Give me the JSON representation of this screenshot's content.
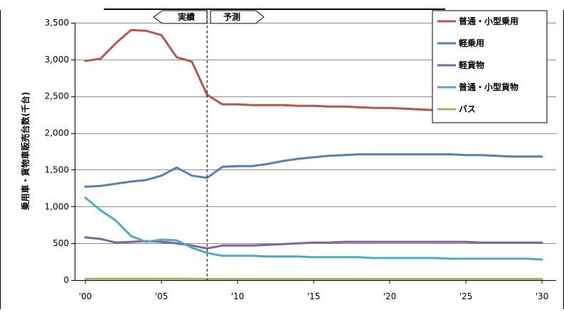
{
  "chart_data": {
    "type": "line",
    "title": "",
    "xlabel": "",
    "ylabel": "乗用車・貨物車販売台数(千台)",
    "x": [
      2000,
      2001,
      2002,
      2003,
      2004,
      2005,
      2006,
      2007,
      2008,
      2009,
      2010,
      2011,
      2012,
      2013,
      2014,
      2015,
      2016,
      2017,
      2018,
      2019,
      2020,
      2021,
      2022,
      2023,
      2024,
      2025,
      2026,
      2027,
      2028,
      2029,
      2030
    ],
    "xticks": [
      2000,
      2005,
      2010,
      2015,
      2020,
      2025,
      2030
    ],
    "xtick_labels": [
      "'00",
      "'05",
      "'10",
      "'15",
      "'20",
      "'25",
      "'30"
    ],
    "xlim": [
      2000,
      2030
    ],
    "ylim": [
      0,
      3500
    ],
    "yticks": [
      0,
      500,
      1000,
      1500,
      2000,
      2500,
      3000,
      3500
    ],
    "ytick_labels": [
      "0",
      "500",
      "1,000",
      "1,500",
      "2,000",
      "2,500",
      "3,000",
      "3,500"
    ],
    "grid": "horizontal",
    "legend_position": "top-right",
    "series": [
      {
        "name": "普通・小型乗用",
        "color": "#c0504d",
        "values": [
          2980,
          3010,
          3220,
          3400,
          3390,
          3330,
          3030,
          2970,
          2520,
          2390,
          2390,
          2380,
          2380,
          2380,
          2370,
          2370,
          2360,
          2360,
          2350,
          2340,
          2340,
          2330,
          2320,
          2310,
          2300,
          2300,
          2290,
          2280,
          2270,
          2260,
          2250
        ]
      },
      {
        "name": "軽乗用",
        "color": "#4f81bd",
        "values": [
          1270,
          1280,
          1310,
          1340,
          1360,
          1420,
          1530,
          1420,
          1390,
          1540,
          1550,
          1550,
          1580,
          1620,
          1650,
          1670,
          1690,
          1700,
          1710,
          1710,
          1710,
          1710,
          1710,
          1710,
          1710,
          1700,
          1700,
          1690,
          1680,
          1680,
          1680
        ]
      },
      {
        "name": "軽貨物",
        "color": "#8064a2",
        "values": [
          580,
          560,
          510,
          520,
          530,
          520,
          500,
          470,
          430,
          470,
          470,
          470,
          480,
          490,
          500,
          510,
          510,
          520,
          520,
          520,
          520,
          520,
          520,
          520,
          520,
          520,
          510,
          510,
          510,
          510,
          510
        ]
      },
      {
        "name": "普通・小型貨物",
        "color": "#4bacc6",
        "values": [
          1120,
          950,
          810,
          600,
          520,
          550,
          540,
          440,
          370,
          330,
          330,
          330,
          320,
          320,
          320,
          310,
          310,
          310,
          310,
          300,
          300,
          300,
          300,
          300,
          290,
          290,
          290,
          290,
          290,
          290,
          280
        ]
      },
      {
        "name": "バス",
        "color": "#9bbb59",
        "values": [
          15,
          18,
          18,
          18,
          18,
          18,
          18,
          16,
          15,
          15,
          15,
          15,
          15,
          15,
          15,
          15,
          15,
          15,
          15,
          15,
          15,
          15,
          15,
          15,
          15,
          15,
          15,
          15,
          15,
          15,
          15
        ]
      }
    ],
    "annotations": {
      "divider_x": 2008,
      "actual_label": "実績",
      "forecast_label": "予測"
    }
  }
}
